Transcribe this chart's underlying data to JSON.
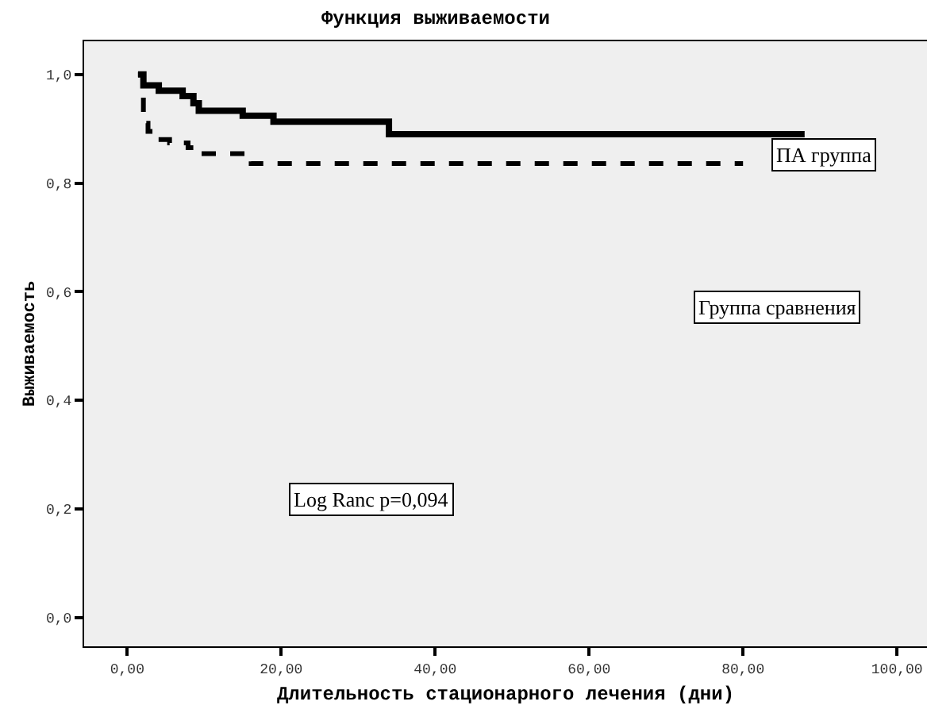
{
  "chart_data": {
    "type": "step",
    "title": "Функция выживаемости",
    "xlabel": "Длительность стационарного лечения (дни)",
    "ylabel": "Выживаемость",
    "series": [
      {
        "name": "ПА группа",
        "color": "#000000",
        "line_style": "solid",
        "x": [
          1.4,
          2.1,
          4.1,
          7.2,
          8.6,
          9.3,
          15,
          19,
          34,
          88
        ],
        "values": [
          1.0,
          0.98,
          0.97,
          0.96,
          0.947,
          0.933,
          0.924,
          0.913,
          0.89,
          0.89
        ]
      },
      {
        "name": "Группа сравнения",
        "color": "#000000",
        "line_style": "dashed",
        "x": [
          1.4,
          2.1,
          2.7,
          3.8,
          5.5,
          7.9,
          9.3,
          16.1,
          80
        ],
        "values": [
          1.0,
          0.91,
          0.895,
          0.88,
          0.874,
          0.865,
          0.854,
          0.836,
          0.836
        ]
      }
    ],
    "annotations": [
      "Log Ranc p=0,094"
    ],
    "xlim": [
      -5.6,
      103.9
    ],
    "ylim": [
      -0.053,
      1.061
    ],
    "xticks": [
      {
        "value": 0,
        "label": "0,00"
      },
      {
        "value": 20,
        "label": "20,00"
      },
      {
        "value": 40,
        "label": "40,00"
      },
      {
        "value": 60,
        "label": "60,00"
      },
      {
        "value": 80,
        "label": "80,00"
      },
      {
        "value": 100,
        "label": "100,00"
      }
    ],
    "yticks": [
      {
        "value": 0,
        "label": "0,0"
      },
      {
        "value": 0.2,
        "label": "0,2"
      },
      {
        "value": 0.4,
        "label": "0,4"
      },
      {
        "value": 0.6,
        "label": "0,6"
      },
      {
        "value": 0.8,
        "label": "0,8"
      },
      {
        "value": 1,
        "label": "1,0"
      }
    ],
    "grid": false,
    "legend": false,
    "marker": "none"
  }
}
